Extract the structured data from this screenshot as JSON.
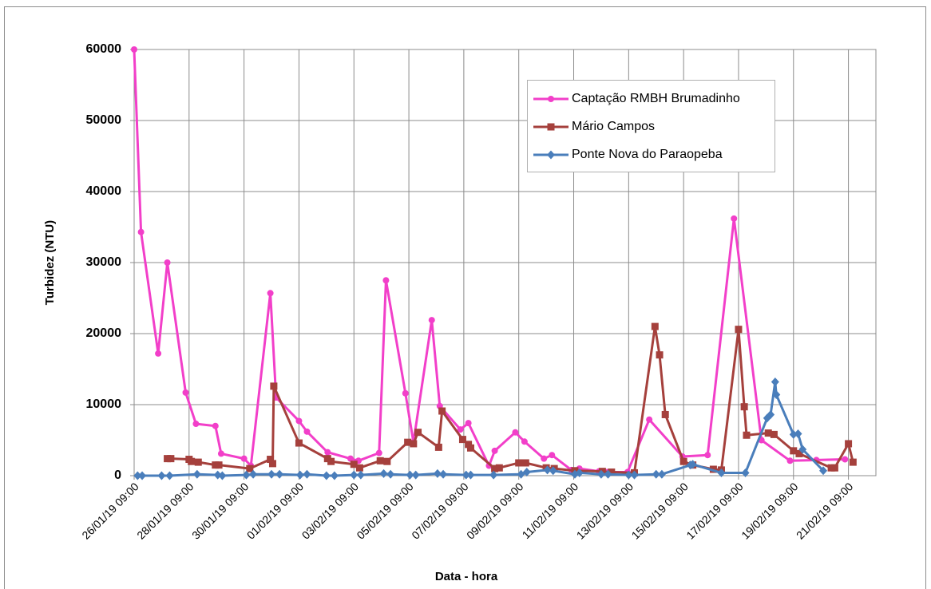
{
  "chart_data": {
    "type": "line",
    "x_label": "Data - hora",
    "y_label": "Turbidez (NTU)",
    "xlim": [
      "26/01/19 09:00",
      "22/02/19 09:00"
    ],
    "xticks": [
      "26/01/19 09:00",
      "28/01/19 09:00",
      "30/01/19 09:00",
      "01/02/19 09:00",
      "03/02/19 09:00",
      "05/02/19 09:00",
      "07/02/19 09:00",
      "09/02/19 09:00",
      "11/02/19 09:00",
      "13/02/19 09:00",
      "15/02/19 09:00",
      "17/02/19 09:00",
      "19/02/19 09:00",
      "21/02/19 09:00"
    ],
    "ylim": [
      0,
      60000
    ],
    "yticks": [
      0,
      10000,
      20000,
      30000,
      40000,
      50000,
      60000
    ],
    "grid": true,
    "legend": "upper right",
    "series": [
      {
        "name": "Captação RMBH Brumadinho",
        "color": "#f23fc9",
        "marker": "circle",
        "x": [
          "26/01/19 09:00",
          "26/01/19 15:00",
          "27/01/19 06:00",
          "27/01/19 14:00",
          "28/01/19 06:00",
          "28/01/19 15:00",
          "29/01/19 08:00",
          "29/01/19 13:00",
          "30/01/19 09:00",
          "30/01/19 15:00",
          "31/01/19 08:00",
          "31/01/19 13:00",
          "01/02/19 09:00",
          "01/02/19 16:00",
          "02/02/19 10:00",
          "03/02/19 06:00",
          "03/02/19 13:00",
          "04/02/19 07:00",
          "04/02/19 13:00",
          "05/02/19 06:00",
          "05/02/19 13:00",
          "06/02/19 05:00",
          "06/02/19 12:00",
          "07/02/19 06:00",
          "07/02/19 13:00",
          "08/02/19 07:00",
          "08/02/19 12:00",
          "09/02/19 06:00",
          "09/02/19 14:00",
          "10/02/19 07:00",
          "10/02/19 14:00",
          "11/02/19 07:00",
          "11/02/19 14:00",
          "12/02/19 07:00",
          "12/02/19 14:00",
          "13/02/19 08:00",
          "14/02/19 03:00",
          "15/02/19 08:00",
          "16/02/19 06:00",
          "17/02/19 05:00",
          "18/02/19 05:00",
          "19/02/19 06:00",
          "20/02/19 05:00",
          "21/02/19 06:00"
        ],
        "values": [
          60000,
          34300,
          17200,
          30000,
          11700,
          7300,
          7000,
          3100,
          2400,
          1400,
          25700,
          11000,
          7700,
          6200,
          3300,
          2400,
          2100,
          3200,
          27500,
          11600,
          4700,
          21900,
          9800,
          6500,
          7400,
          1400,
          3500,
          6100,
          4800,
          2400,
          2900,
          800,
          1000,
          600,
          500,
          500,
          7900,
          2700,
          2900,
          36200,
          5000,
          2100,
          2200,
          2300
        ]
      },
      {
        "name": "Mário Campos",
        "color": "#a5403c",
        "marker": "square",
        "x": [
          "27/01/19 14:00",
          "27/01/19 17:00",
          "28/01/19 09:00",
          "28/01/19 11:00",
          "28/01/19 17:00",
          "29/01/19 08:00",
          "29/01/19 11:00",
          "30/01/19 14:00",
          "31/01/19 08:00",
          "31/01/19 10:00",
          "31/01/19 11:00",
          "01/02/19 09:00",
          "02/02/19 10:00",
          "02/02/19 13:00",
          "03/02/19 09:00",
          "03/02/19 14:00",
          "04/02/19 08:00",
          "04/02/19 14:00",
          "05/02/19 08:00",
          "05/02/19 13:00",
          "05/02/19 17:00",
          "06/02/19 11:00",
          "06/02/19 14:00",
          "07/02/19 08:00",
          "07/02/19 13:00",
          "07/02/19 15:00",
          "08/02/19 12:00",
          "08/02/19 16:00",
          "09/02/19 09:00",
          "09/02/19 15:00",
          "10/02/19 09:00",
          "10/02/19 16:00",
          "11/02/19 10:00",
          "12/02/19 10:00",
          "12/02/19 18:00",
          "13/02/19 14:00",
          "14/02/19 08:00",
          "14/02/19 12:00",
          "14/02/19 17:00",
          "15/02/19 09:00",
          "15/02/19 17:00",
          "16/02/19 11:00",
          "16/02/19 18:00",
          "17/02/19 09:00",
          "17/02/19 14:00",
          "17/02/19 16:00",
          "18/02/19 11:00",
          "18/02/19 16:00",
          "19/02/19 09:00",
          "19/02/19 14:00",
          "20/02/19 18:00",
          "20/02/19 21:00",
          "21/02/19 09:00",
          "21/02/19 13:00"
        ],
        "values": [
          2400,
          2400,
          2300,
          2000,
          1900,
          1500,
          1500,
          1000,
          2300,
          1700,
          12600,
          4600,
          2400,
          2000,
          1600,
          1100,
          2100,
          2000,
          4700,
          4500,
          6100,
          4000,
          9100,
          5100,
          4400,
          3900,
          1000,
          1100,
          1800,
          1800,
          1100,
          1000,
          700,
          600,
          500,
          400,
          21000,
          17000,
          8600,
          2000,
          1500,
          900,
          800,
          20600,
          9700,
          5700,
          6000,
          5800,
          3500,
          3100,
          1100,
          1100,
          4500,
          1900
        ]
      },
      {
        "name": "Ponte Nova do Paraopeba",
        "color": "#4a7ebb",
        "marker": "diamond",
        "x": [
          "26/01/19 12:00",
          "26/01/19 16:00",
          "27/01/19 09:00",
          "27/01/19 16:00",
          "28/01/19 16:00",
          "29/01/19 10:00",
          "29/01/19 14:00",
          "30/01/19 11:00",
          "30/01/19 17:00",
          "31/01/19 09:00",
          "31/01/19 16:00",
          "01/02/19 10:00",
          "01/02/19 16:00",
          "02/02/19 09:00",
          "02/02/19 16:00",
          "03/02/19 09:00",
          "03/02/19 15:00",
          "04/02/19 11:00",
          "04/02/19 17:00",
          "05/02/19 10:00",
          "05/02/19 15:00",
          "06/02/19 10:00",
          "06/02/19 15:00",
          "07/02/19 11:00",
          "07/02/19 15:00",
          "08/02/19 11:00",
          "09/02/19 11:00",
          "09/02/19 16:00",
          "10/02/19 10:00",
          "10/02/19 15:00",
          "11/02/19 10:00",
          "11/02/19 14:00",
          "12/02/19 09:00",
          "12/02/19 15:00",
          "13/02/19 09:00",
          "13/02/19 14:00",
          "14/02/19 09:00",
          "14/02/19 14:00",
          "15/02/19 15:00",
          "15/02/19 17:00",
          "16/02/19 18:00",
          "17/02/19 15:00",
          "18/02/19 10:00",
          "18/02/19 13:00",
          "18/02/19 17:00",
          "18/02/19 18:00",
          "19/02/19 09:00",
          "19/02/19 13:00",
          "19/02/19 17:00",
          "20/02/19 11:00"
        ],
        "values": [
          0,
          0,
          0,
          0,
          200,
          100,
          0,
          100,
          200,
          200,
          200,
          100,
          200,
          0,
          0,
          100,
          100,
          300,
          200,
          100,
          100,
          300,
          200,
          100,
          100,
          100,
          200,
          500,
          800,
          700,
          200,
          400,
          200,
          200,
          100,
          100,
          200,
          200,
          1500,
          1600,
          400,
          400,
          8100,
          8600,
          13200,
          11400,
          5800,
          5900,
          3700,
          700
        ]
      }
    ]
  }
}
